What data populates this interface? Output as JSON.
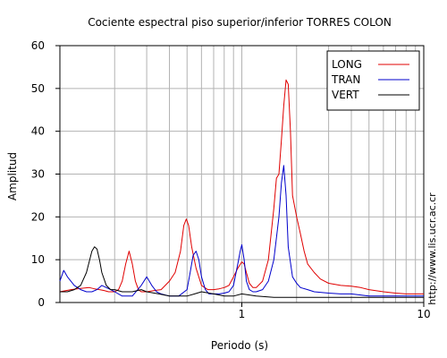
{
  "chart_data": {
    "type": "line",
    "title": "Cociente espectral piso superior/inferior  TORRES COLON",
    "xlabel": "Periodo (s)",
    "ylabel": "Amplitud",
    "x_scale": "log",
    "xlim": [
      0.1,
      10
    ],
    "ylim": [
      0,
      60
    ],
    "x_tick_labels": [
      "1",
      "10"
    ],
    "y_tick_labels": [
      "0",
      "10",
      "20",
      "30",
      "40",
      "50",
      "60"
    ],
    "grid": true,
    "legend_position": "top-right",
    "side_text": "http://www.lis.ucr.ac.cr",
    "series": [
      {
        "name": "LONG",
        "color": "#e00000",
        "x": [
          0.1,
          0.115,
          0.13,
          0.145,
          0.155,
          0.165,
          0.175,
          0.185,
          0.2,
          0.21,
          0.22,
          0.23,
          0.24,
          0.25,
          0.26,
          0.27,
          0.28,
          0.3,
          0.33,
          0.36,
          0.4,
          0.43,
          0.46,
          0.48,
          0.495,
          0.51,
          0.53,
          0.56,
          0.6,
          0.65,
          0.7,
          0.75,
          0.8,
          0.85,
          0.9,
          0.95,
          1.0,
          1.03,
          1.06,
          1.1,
          1.15,
          1.2,
          1.3,
          1.4,
          1.5,
          1.55,
          1.6,
          1.65,
          1.7,
          1.75,
          1.8,
          1.85,
          1.9,
          2.0,
          2.1,
          2.2,
          2.3,
          2.5,
          2.7,
          3.0,
          3.5,
          4.0,
          4.5,
          5.0,
          6.0,
          7.0,
          8.0,
          10.0
        ],
        "y": [
          2.5,
          3,
          3.3,
          3.5,
          3.2,
          3.0,
          2.8,
          2.5,
          2.5,
          3,
          5,
          9,
          12,
          9,
          5,
          3,
          2.5,
          2.5,
          2.8,
          3,
          5,
          7,
          12,
          18,
          19.5,
          18,
          13,
          8,
          4,
          3,
          3,
          3.2,
          3.5,
          4,
          6,
          8,
          9.5,
          9,
          7,
          4.5,
          3.5,
          3.5,
          5,
          10,
          22,
          29,
          30,
          38,
          46,
          52,
          51,
          40,
          25,
          20,
          16,
          12,
          9,
          7,
          5.5,
          4.5,
          4,
          3.8,
          3.5,
          3,
          2.5,
          2.2,
          2,
          2
        ]
      },
      {
        "name": "TRAN",
        "color": "#0000cc",
        "x": [
          0.1,
          0.105,
          0.11,
          0.12,
          0.13,
          0.14,
          0.15,
          0.16,
          0.17,
          0.18,
          0.19,
          0.2,
          0.22,
          0.25,
          0.28,
          0.3,
          0.32,
          0.34,
          0.36,
          0.4,
          0.45,
          0.5,
          0.52,
          0.54,
          0.56,
          0.58,
          0.6,
          0.63,
          0.66,
          0.7,
          0.75,
          0.8,
          0.85,
          0.9,
          0.95,
          0.98,
          1.0,
          1.03,
          1.06,
          1.1,
          1.15,
          1.2,
          1.3,
          1.4,
          1.5,
          1.6,
          1.65,
          1.7,
          1.75,
          1.8,
          1.9,
          2.0,
          2.1,
          2.3,
          2.5,
          3.0,
          3.5,
          4.0,
          5.0,
          6.0,
          7.0,
          8.0,
          10.0
        ],
        "y": [
          5,
          7.5,
          6,
          4,
          3,
          2.5,
          2.5,
          3,
          4,
          3.5,
          3,
          2.5,
          1.5,
          1.5,
          4,
          6,
          4,
          2.5,
          2,
          1.5,
          1.5,
          3,
          7,
          11,
          12,
          10,
          6,
          3,
          2,
          2,
          2,
          2.2,
          2.5,
          4,
          9,
          12,
          13.5,
          10,
          5,
          3,
          2.5,
          2.5,
          3,
          5,
          10,
          20,
          28,
          32,
          25,
          13,
          6,
          4.5,
          3.5,
          3,
          2.5,
          2.2,
          2,
          2,
          1.5,
          1.5,
          1.5,
          1.5,
          1.5
        ]
      },
      {
        "name": "VERT",
        "color": "#000000",
        "x": [
          0.1,
          0.11,
          0.12,
          0.13,
          0.14,
          0.15,
          0.155,
          0.16,
          0.165,
          0.17,
          0.18,
          0.19,
          0.2,
          0.22,
          0.25,
          0.28,
          0.3,
          0.35,
          0.4,
          0.45,
          0.5,
          0.55,
          0.6,
          0.7,
          0.8,
          0.9,
          1.0,
          1.2,
          1.5,
          2.0,
          2.5,
          3.0,
          4.0,
          5.0,
          6.0,
          8.0,
          10.0
        ],
        "y": [
          2.5,
          2.5,
          3,
          4,
          7,
          12,
          13,
          12.5,
          10,
          7,
          4,
          3,
          3,
          2.5,
          2.5,
          3,
          2.5,
          2,
          1.5,
          1.5,
          1.5,
          2,
          2.5,
          2,
          1.5,
          1.5,
          2,
          1.5,
          1.2,
          1.2,
          1.2,
          1.2,
          1.2,
          1.2,
          1.2,
          1.2,
          1.2
        ]
      }
    ]
  }
}
